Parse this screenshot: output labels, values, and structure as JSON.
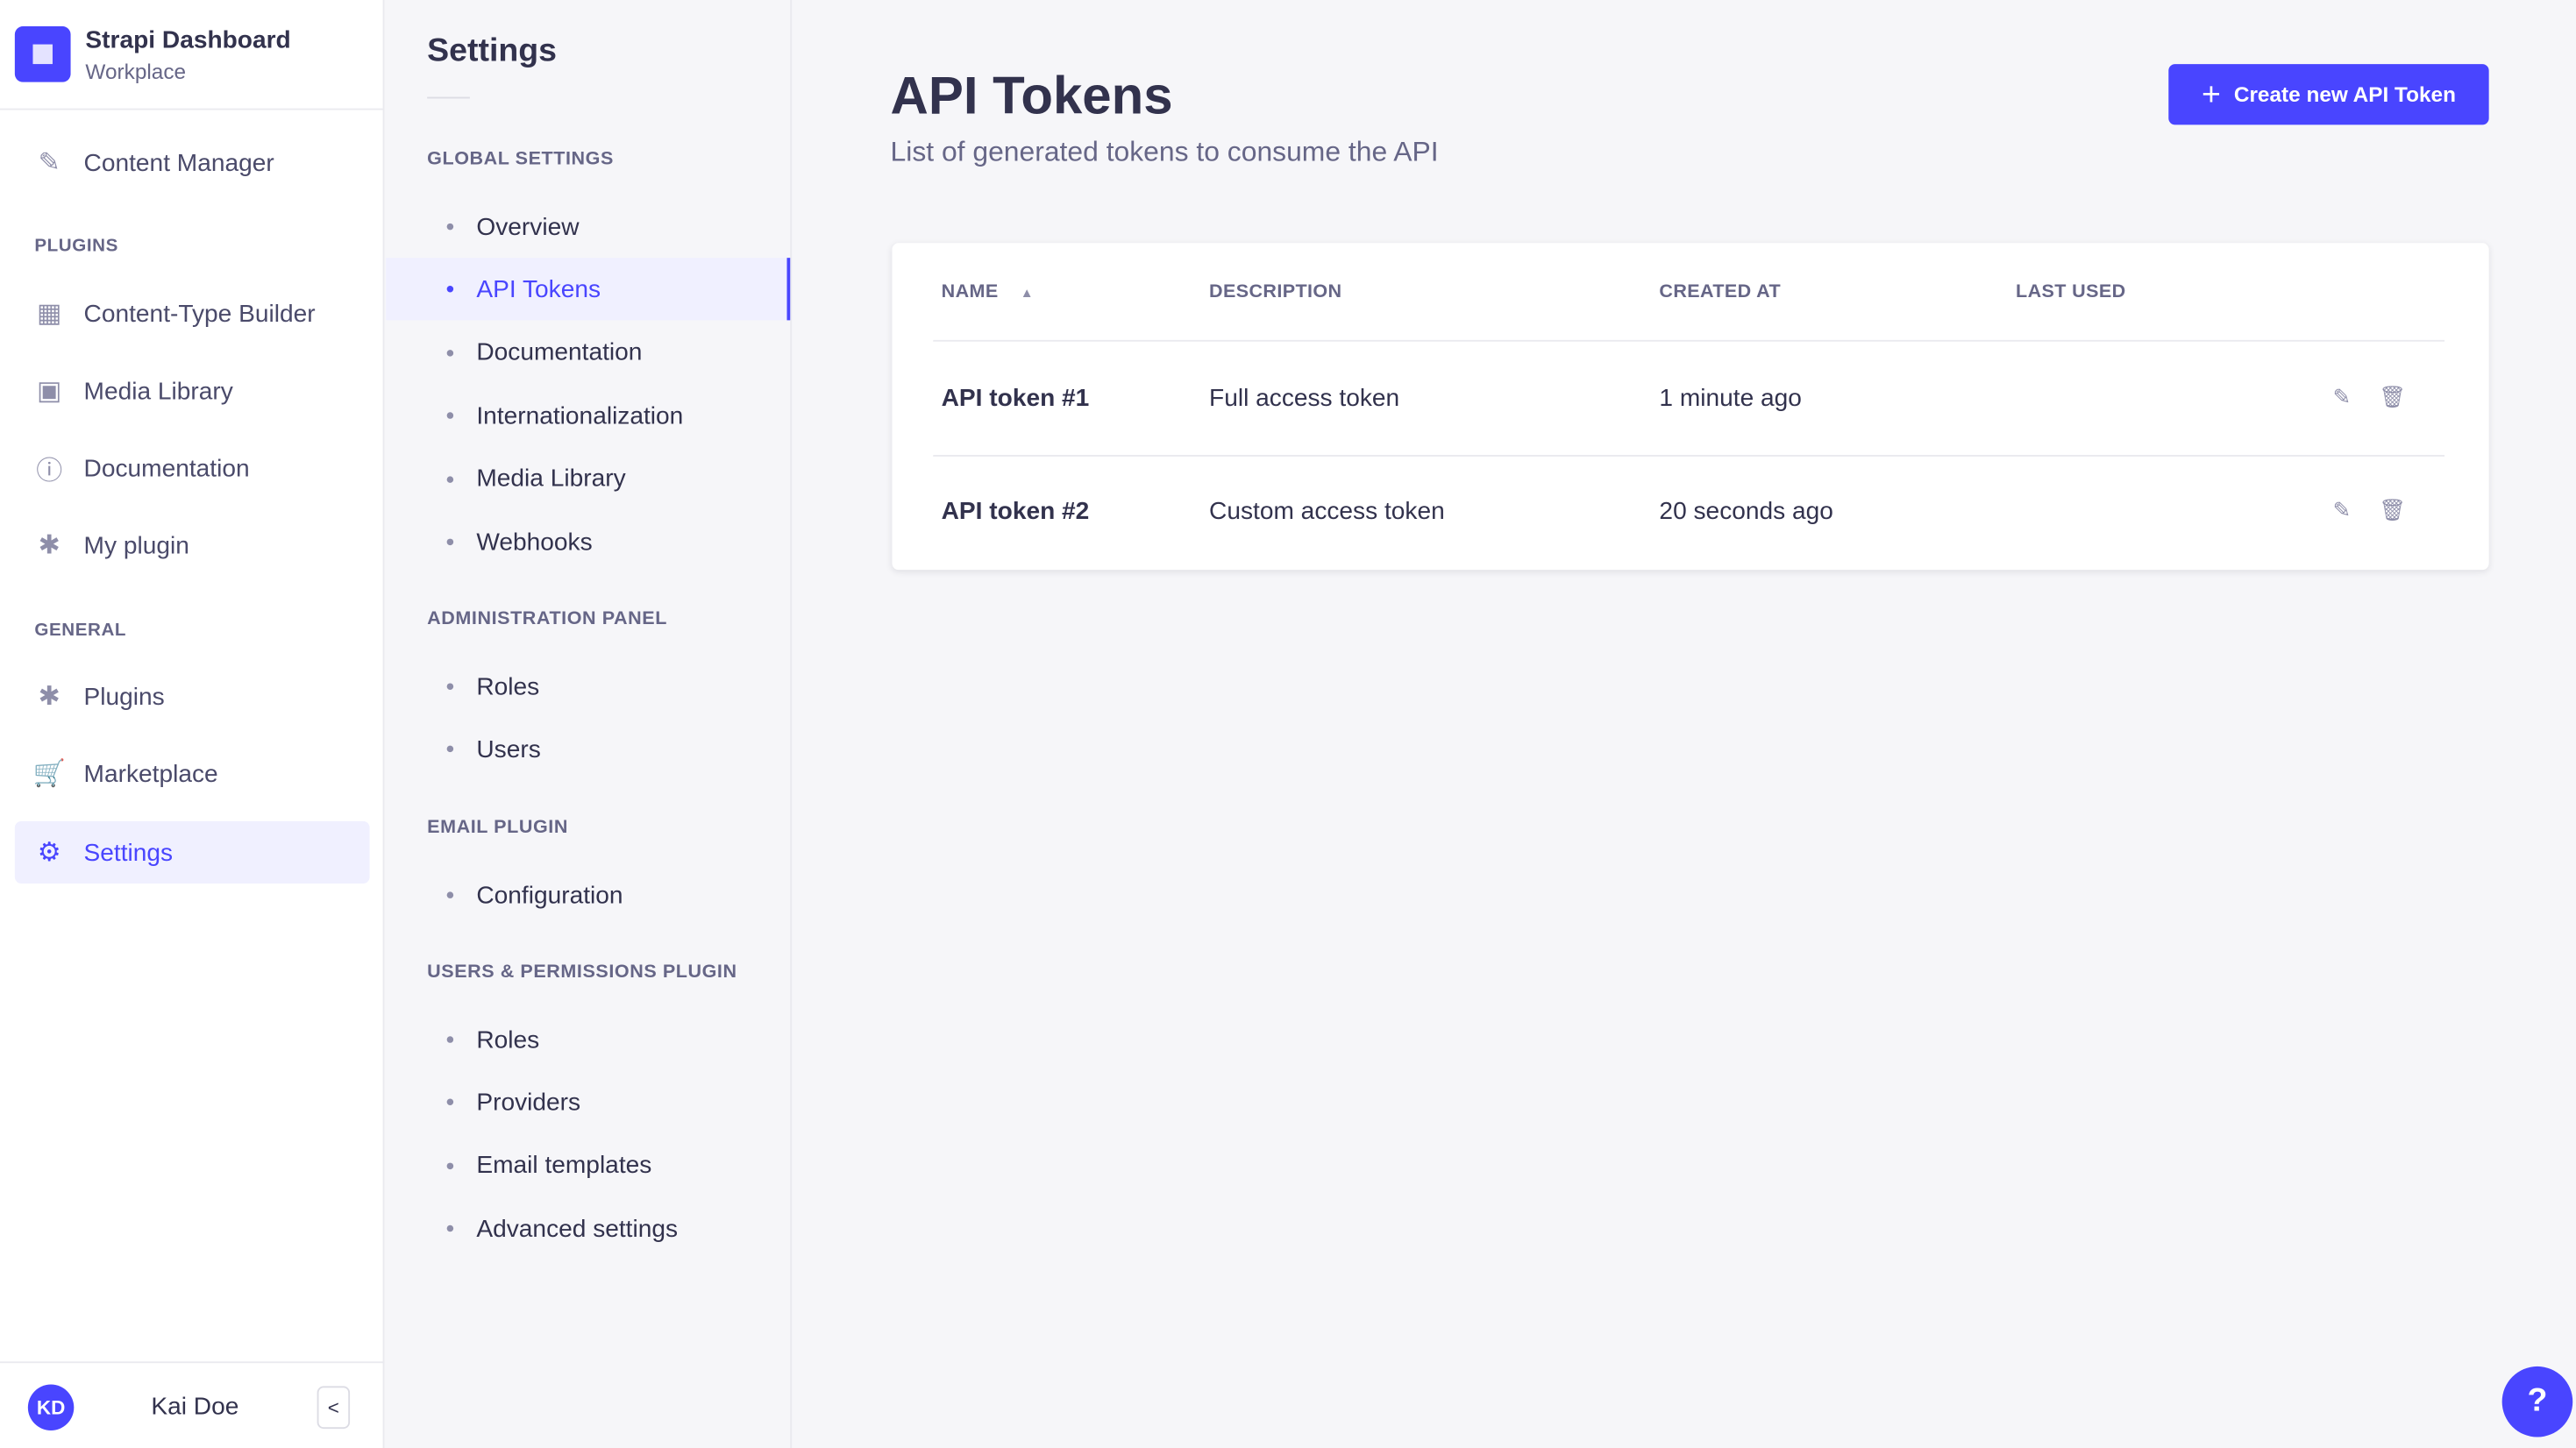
{
  "brand": {
    "title": "Strapi Dashboard",
    "subtitle": "Workplace"
  },
  "nav": {
    "top": [
      {
        "label": "Content Manager",
        "icon": "pen-icon"
      }
    ],
    "plugins_label": "PLUGINS",
    "plugins": [
      {
        "label": "Content-Type Builder",
        "icon": "layout-icon"
      },
      {
        "label": "Media Library",
        "icon": "image-icon"
      },
      {
        "label": "Documentation",
        "icon": "info-icon"
      },
      {
        "label": "My plugin",
        "icon": "puzzle-icon"
      }
    ],
    "general_label": "GENERAL",
    "general": [
      {
        "label": "Plugins",
        "icon": "puzzle-icon"
      },
      {
        "label": "Marketplace",
        "icon": "cart-icon"
      },
      {
        "label": "Settings",
        "icon": "gear-icon",
        "active": true
      }
    ],
    "user": {
      "initials": "KD",
      "name": "Kai Doe"
    },
    "collapse_icon": "chevron-left-icon"
  },
  "settings": {
    "title": "Settings",
    "sections": [
      {
        "label": "GLOBAL SETTINGS",
        "items": [
          "Overview",
          "API Tokens",
          "Documentation",
          "Internationalization",
          "Media Library",
          "Webhooks"
        ]
      },
      {
        "label": "ADMINISTRATION PANEL",
        "items": [
          "Roles",
          "Users"
        ]
      },
      {
        "label": "EMAIL PLUGIN",
        "items": [
          "Configuration"
        ]
      },
      {
        "label": "USERS & PERMISSIONS PLUGIN",
        "items": [
          "Roles",
          "Providers",
          "Email templates",
          "Advanced settings"
        ]
      }
    ],
    "active": "API Tokens"
  },
  "main": {
    "title": "API Tokens",
    "subtitle": "List of generated tokens to consume the API",
    "create_button": "Create new API Token",
    "table": {
      "columns": [
        "NAME",
        "DESCRIPTION",
        "CREATED AT",
        "LAST USED"
      ],
      "sort_indicator": "▲",
      "rows": [
        {
          "name": "API token #1",
          "description": "Full access token",
          "created_at": "1 minute ago",
          "last_used": ""
        },
        {
          "name": "API token #2",
          "description": "Custom access token",
          "created_at": "20 seconds ago",
          "last_used": ""
        }
      ]
    }
  },
  "help": "?",
  "colors": {
    "accent": "#4945ff",
    "text": "#32324d",
    "muted": "#666687"
  }
}
